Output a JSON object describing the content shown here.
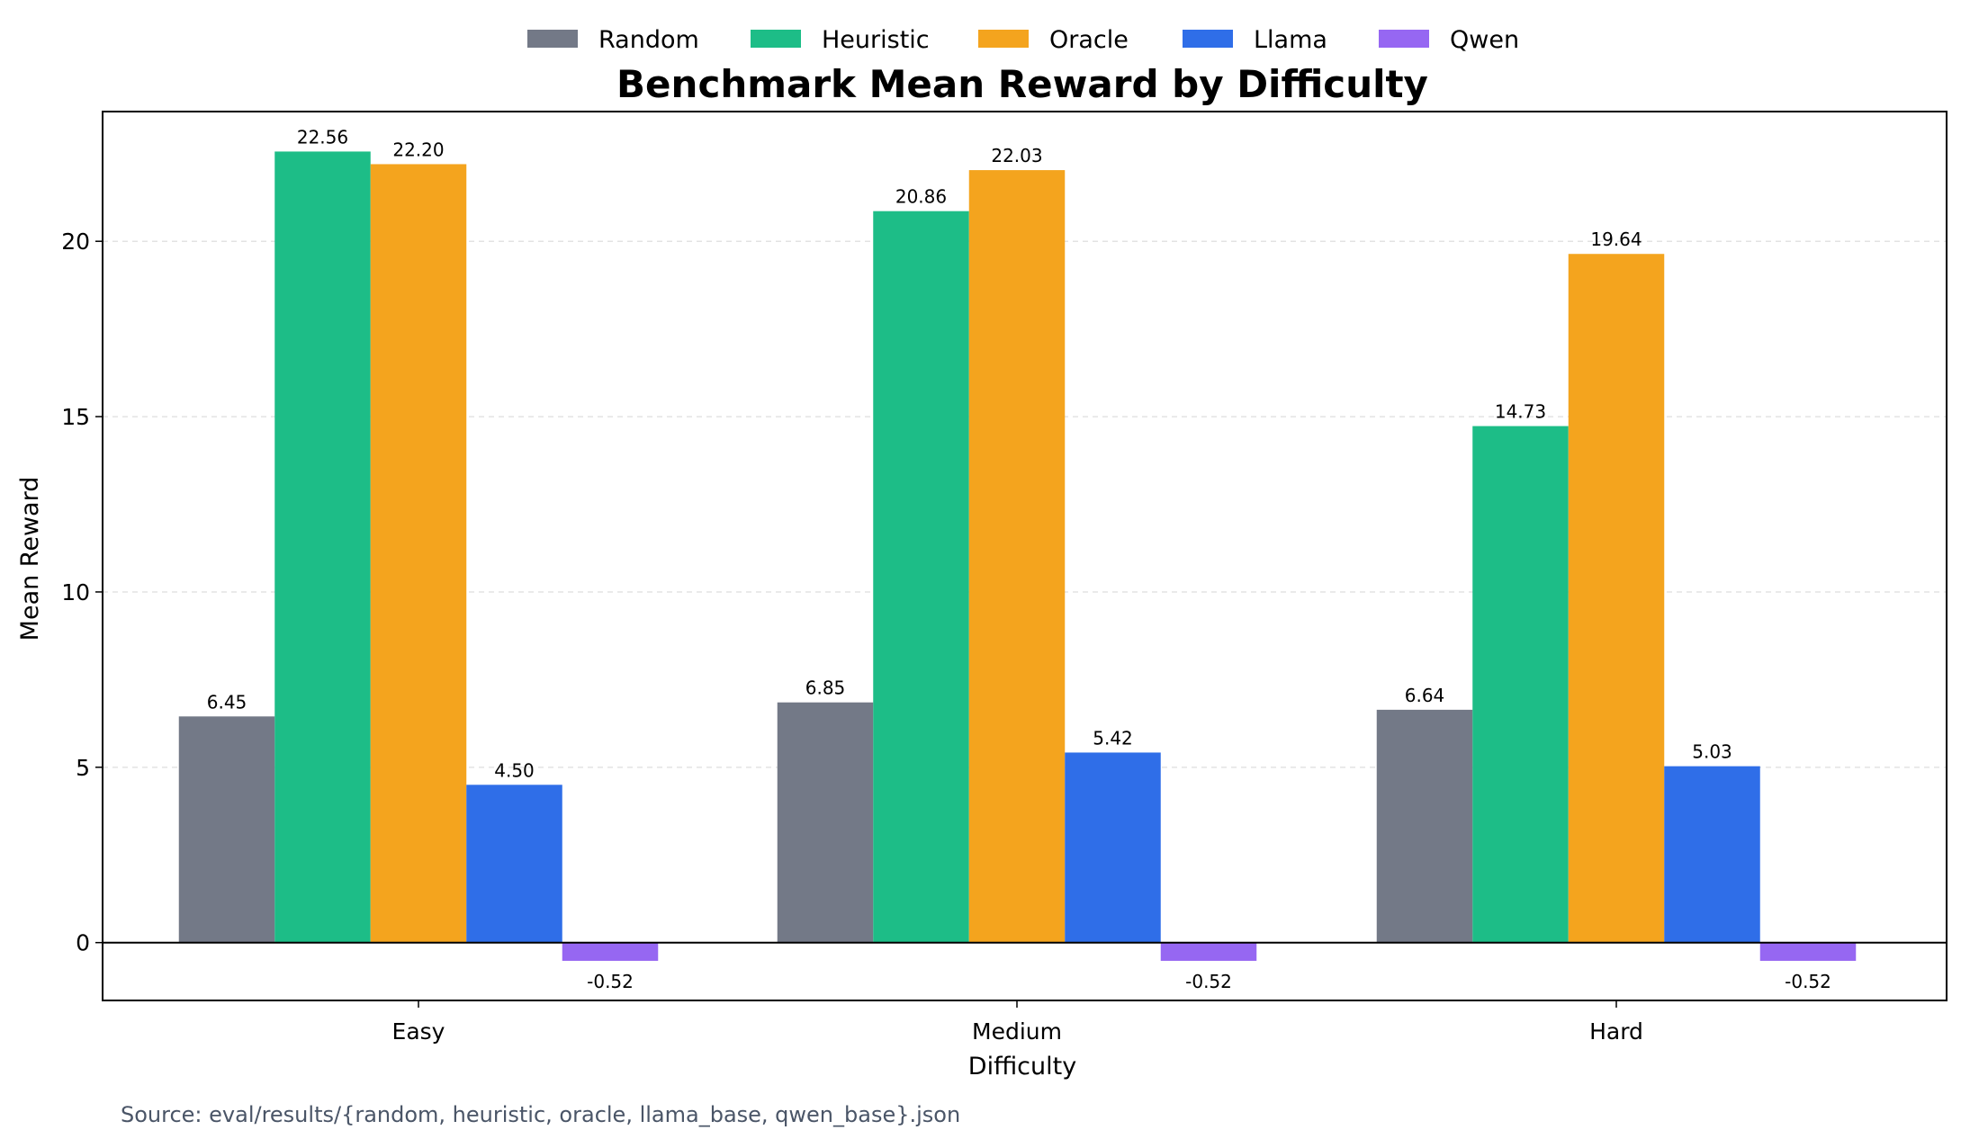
{
  "chart_data": {
    "type": "bar",
    "title": "Benchmark Mean Reward by Difficulty",
    "xlabel": "Difficulty",
    "ylabel": "Mean Reward",
    "categories": [
      "Easy",
      "Medium",
      "Hard"
    ],
    "series": [
      {
        "name": "Random",
        "color": "#737987",
        "values": [
          6.45,
          6.85,
          6.64
        ],
        "labels": [
          "6.45",
          "6.85",
          "6.64"
        ]
      },
      {
        "name": "Heuristic",
        "color": "#1dbd87",
        "values": [
          22.56,
          20.86,
          14.73
        ],
        "labels": [
          "22.56",
          "20.86",
          "14.73"
        ]
      },
      {
        "name": "Oracle",
        "color": "#f4a41e",
        "values": [
          22.2,
          22.03,
          19.64
        ],
        "labels": [
          "22.20",
          "22.03",
          "19.64"
        ]
      },
      {
        "name": "Llama",
        "color": "#2f6ee8",
        "values": [
          4.5,
          5.42,
          5.03
        ],
        "labels": [
          "4.50",
          "5.42",
          "5.03"
        ]
      },
      {
        "name": "Qwen",
        "color": "#9667f2",
        "values": [
          -0.52,
          -0.52,
          -0.52
        ],
        "labels": [
          "-0.52",
          "-0.52",
          "-0.52"
        ]
      }
    ],
    "yticks": [
      0,
      5,
      10,
      15,
      20
    ],
    "ylim": [
      -1.65,
      23.7
    ],
    "grid": "horizontal dashed",
    "legend_position": "top-center"
  },
  "source_note": "Source: eval/results/{random, heuristic, oracle, llama_base, qwen_base}.json"
}
